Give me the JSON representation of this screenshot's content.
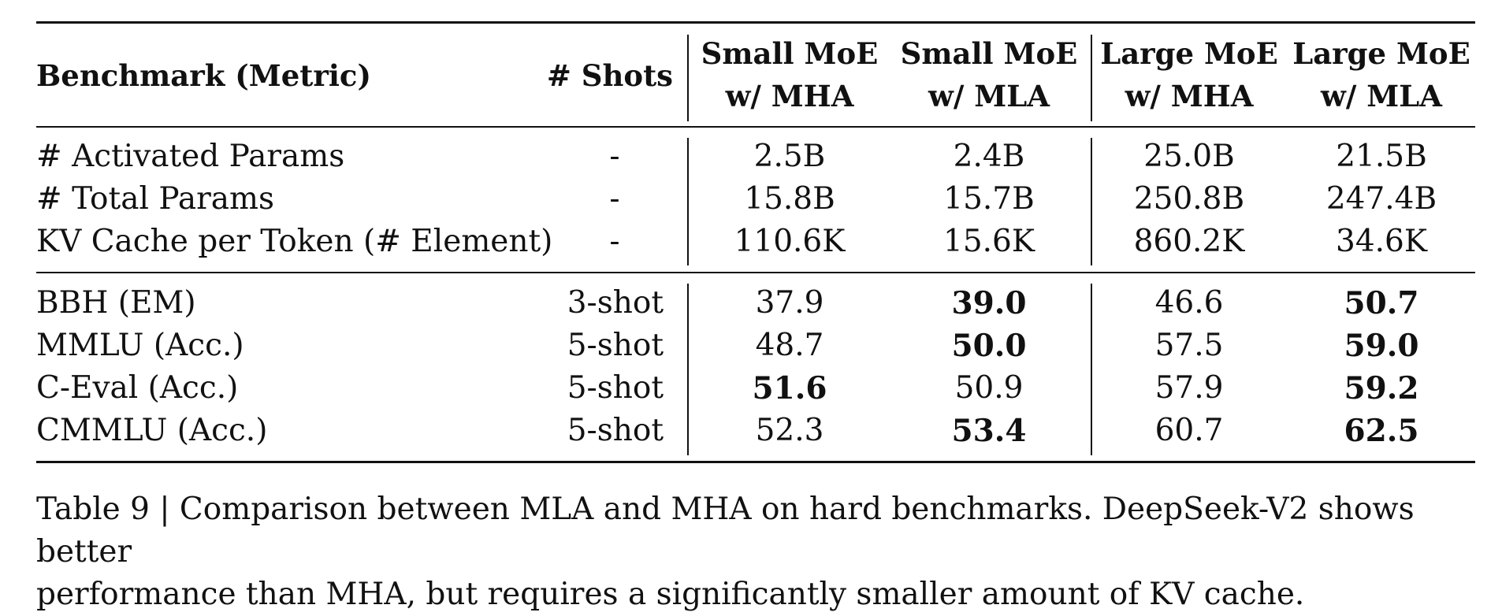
{
  "table": {
    "headers": {
      "benchmark": "Benchmark (Metric)",
      "shots": "# Shots",
      "col1": [
        "Small MoE",
        "w/ MHA"
      ],
      "col2": [
        "Small MoE",
        "w/ MLA"
      ],
      "col3": [
        "Large MoE",
        "w/ MHA"
      ],
      "col4": [
        "Large MoE",
        "w/ MLA"
      ]
    },
    "param_rows": [
      {
        "label": "# Activated Params",
        "shots": "-",
        "values": [
          "2.5B",
          "2.4B",
          "25.0B",
          "21.5B"
        ],
        "bold": [
          false,
          false,
          false,
          false
        ]
      },
      {
        "label": "# Total Params",
        "shots": "-",
        "values": [
          "15.8B",
          "15.7B",
          "250.8B",
          "247.4B"
        ],
        "bold": [
          false,
          false,
          false,
          false
        ]
      },
      {
        "label": "KV Cache per Token (# Element)",
        "shots": "-",
        "values": [
          "110.6K",
          "15.6K",
          "860.2K",
          "34.6K"
        ],
        "bold": [
          false,
          false,
          false,
          false
        ]
      }
    ],
    "bench_rows": [
      {
        "label": "BBH (EM)",
        "shots": "3-shot",
        "values": [
          "37.9",
          "39.0",
          "46.6",
          "50.7"
        ],
        "bold": [
          false,
          true,
          false,
          true
        ]
      },
      {
        "label": "MMLU (Acc.)",
        "shots": "5-shot",
        "values": [
          "48.7",
          "50.0",
          "57.5",
          "59.0"
        ],
        "bold": [
          false,
          true,
          false,
          true
        ]
      },
      {
        "label": "C-Eval (Acc.)",
        "shots": "5-shot",
        "values": [
          "51.6",
          "50.9",
          "57.9",
          "59.2"
        ],
        "bold": [
          true,
          false,
          false,
          true
        ]
      },
      {
        "label": "CMMLU (Acc.)",
        "shots": "5-shot",
        "values": [
          "52.3",
          "53.4",
          "60.7",
          "62.5"
        ],
        "bold": [
          false,
          true,
          false,
          true
        ]
      }
    ]
  },
  "caption": {
    "line1": "Table 9 | Comparison between MLA and MHA on hard benchmarks. DeepSeek-V2 shows better",
    "line2": "performance than MHA, but requires a significantly smaller amount of KV cache."
  }
}
